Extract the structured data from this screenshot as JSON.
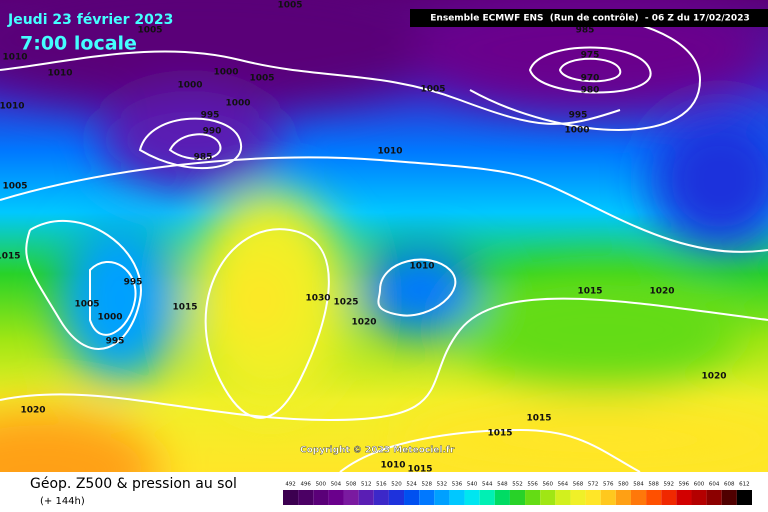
{
  "header": {
    "date": "Jeudi 23 février 2023",
    "time": "7:00 locale",
    "model": "Ensemble ECMWF ENS  (Run de contrôle)  - 06 Z du 17/02/2023"
  },
  "map": {
    "isobar_labels": [
      "1005",
      "1005",
      "1010",
      "1010",
      "1000",
      "1005",
      "1000",
      "1010",
      "1000",
      "995",
      "990",
      "985",
      "985",
      "975",
      "970",
      "980",
      "1005",
      "995",
      "1000",
      "1010",
      "1005",
      "1015",
      "995",
      "1005",
      "1000",
      "995",
      "1015",
      "1030",
      "1025",
      "1010",
      "1020",
      "1015",
      "1020",
      "1020",
      "1020",
      "1015",
      "1015",
      "1010",
      "1015"
    ],
    "copyright": "Copyright © 2023 Meteociel.fr"
  },
  "footer": {
    "title": "Géop. Z500 & pression au sol",
    "lead": "(+ 144h)"
  },
  "legend": {
    "values": [
      492,
      496,
      500,
      504,
      508,
      512,
      516,
      520,
      524,
      528,
      532,
      536,
      540,
      544,
      548,
      552,
      556,
      560,
      564,
      568,
      572,
      576,
      580,
      584,
      588,
      592,
      596,
      600,
      604,
      608,
      612
    ],
    "colors": [
      "#3c0050",
      "#4b0064",
      "#5a0078",
      "#6a008c",
      "#7a1aa0",
      "#5a1eb4",
      "#3c28c8",
      "#1e32dc",
      "#0050f0",
      "#0078ff",
      "#00a0ff",
      "#00c8ff",
      "#00e6f0",
      "#00f0b4",
      "#00dc64",
      "#28d228",
      "#64dc14",
      "#a0e614",
      "#d2f01e",
      "#f0f028",
      "#ffe628",
      "#ffc81e",
      "#ffa014",
      "#ff780a",
      "#ff5000",
      "#f02800",
      "#d20000",
      "#b40000",
      "#8c0000",
      "#500000",
      "#000000"
    ]
  }
}
